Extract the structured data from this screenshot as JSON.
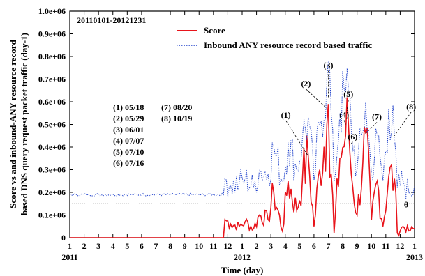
{
  "chart_data": {
    "type": "line",
    "period_label": "20110101-20121231",
    "xlabel": "Time (day)",
    "ylabel_line1": "Score vs and inbound-ANY resource record",
    "ylabel_line2": "based DNS query request packet traffic (day-1)",
    "ylim": [
      0,
      1000000
    ],
    "y_ticks": [
      "0",
      "0.1e+06",
      "0.2e+06",
      "0.3e+06",
      "0.4e+06",
      "0.5e+06",
      "0.6e+06",
      "0.7e+06",
      "0.8e+06",
      "0.9e+06",
      "1.0e+06"
    ],
    "x_month_ticks": [
      "1",
      "2",
      "3",
      "4",
      "5",
      "6",
      "7",
      "8",
      "9",
      "10",
      "11",
      "12",
      "1",
      "2",
      "3",
      "4",
      "5",
      "6",
      "7",
      "8",
      "9",
      "10",
      "11",
      "12",
      "1"
    ],
    "x_year_ticks": [
      "2011",
      "2012",
      "2013"
    ],
    "threshold": {
      "value": 150000,
      "label": "θ"
    },
    "legend": {
      "placement": "top-right",
      "entries": [
        {
          "name": "Score",
          "color": "#e8141b",
          "style": "solid"
        },
        {
          "name": "Inbound ANY resource record based traffic",
          "color": "#2244cc",
          "style": "dotted"
        }
      ]
    },
    "events_list": [
      "(1) 05/18",
      "(2) 05/29",
      "(3) 06/01",
      "(4) 07/07",
      "(5) 07/10",
      "(6) 07/16",
      "(7) 08/20",
      "(8) 10/19"
    ],
    "annotations": [
      {
        "label": "(1)",
        "month": 16.6,
        "value": 360000
      },
      {
        "label": "(2)",
        "month": 17.9,
        "value": 570000
      },
      {
        "label": "(3)",
        "month": 18.0,
        "value": 620000
      },
      {
        "label": "(4)",
        "month": 19.2,
        "value": 500000
      },
      {
        "label": "(5)",
        "month": 19.3,
        "value": 560000
      },
      {
        "label": "(6)",
        "month": 19.5,
        "value": 410000
      },
      {
        "label": "(7)",
        "month": 20.6,
        "value": 460000
      },
      {
        "label": "(8)",
        "month": 22.6,
        "value": 450000
      }
    ],
    "series": [
      {
        "name": "Score",
        "color": "#e8141b",
        "x_months": [
          0,
          10.7,
          10.8,
          11.2,
          11.8,
          12.2,
          12.8,
          13.2,
          13.8,
          14.2,
          14.8,
          15.2,
          15.8,
          16.2,
          16.6,
          17.0,
          17.4,
          17.9,
          18.0,
          18.4,
          18.8,
          19.2,
          19.4,
          19.6,
          20.0,
          20.4,
          20.6,
          21.0,
          21.4,
          21.8,
          22.2,
          22.6,
          22.8,
          23.2,
          23.6,
          24.0
        ],
        "values": [
          0,
          0,
          80000,
          60000,
          50000,
          70000,
          40000,
          100000,
          80000,
          200000,
          30000,
          250000,
          120000,
          260000,
          360000,
          50000,
          300000,
          500000,
          590000,
          20000,
          350000,
          450000,
          500000,
          280000,
          100000,
          330000,
          460000,
          80000,
          250000,
          50000,
          270000,
          260000,
          20000,
          50000,
          30000,
          40000
        ]
      },
      {
        "name": "Inbound ANY resource record based traffic",
        "color": "#2244cc",
        "x_months": [
          0,
          10.7,
          10.8,
          11.2,
          11.8,
          12.2,
          12.8,
          13.2,
          13.8,
          14.2,
          14.8,
          15.2,
          15.8,
          16.2,
          16.6,
          17.0,
          17.4,
          17.9,
          18.0,
          18.4,
          18.8,
          19.2,
          19.4,
          19.6,
          20.0,
          20.4,
          20.6,
          21.0,
          21.4,
          21.8,
          22.2,
          22.6,
          22.8,
          23.2,
          23.6,
          24.0
        ],
        "values": [
          190000,
          190000,
          260000,
          230000,
          240000,
          260000,
          220000,
          300000,
          280000,
          400000,
          250000,
          420000,
          300000,
          440000,
          530000,
          250000,
          500000,
          700000,
          780000,
          250000,
          550000,
          640000,
          650000,
          480000,
          300000,
          470000,
          600000,
          280000,
          450000,
          250000,
          570000,
          440000,
          220000,
          250000,
          200000,
          230000
        ]
      }
    ]
  }
}
